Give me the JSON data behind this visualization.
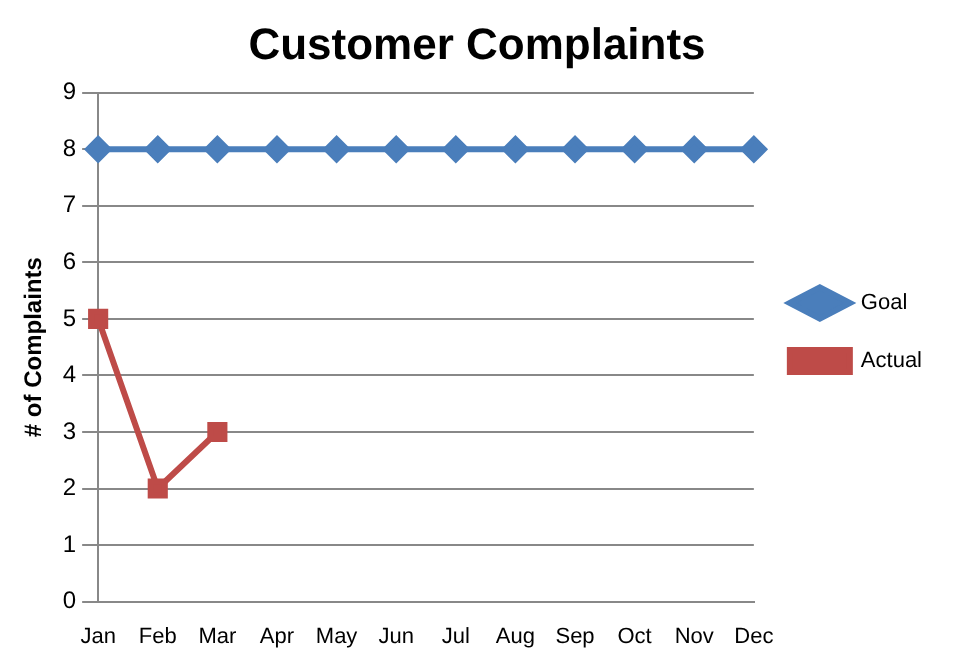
{
  "chart_data": {
    "type": "line",
    "title": "Customer Complaints",
    "ylabel": "# of Complaints",
    "categories": [
      "Jan",
      "Feb",
      "Mar",
      "Apr",
      "May",
      "Jun",
      "Jul",
      "Aug",
      "Sep",
      "Oct",
      "Nov",
      "Dec"
    ],
    "series": [
      {
        "name": "Goal",
        "color": "#4a7ebb",
        "marker": "diamond",
        "values": [
          8,
          8,
          8,
          8,
          8,
          8,
          8,
          8,
          8,
          8,
          8,
          8
        ]
      },
      {
        "name": "Actual",
        "color": "#be4b48",
        "marker": "square",
        "values": [
          5,
          2,
          3,
          null,
          null,
          null,
          null,
          null,
          null,
          null,
          null,
          null
        ]
      }
    ],
    "ylim": [
      0,
      9
    ],
    "yticks": [
      0,
      1,
      2,
      3,
      4,
      5,
      6,
      7,
      8,
      9
    ],
    "grid": "y",
    "legend": "right",
    "line_style": "solid"
  }
}
